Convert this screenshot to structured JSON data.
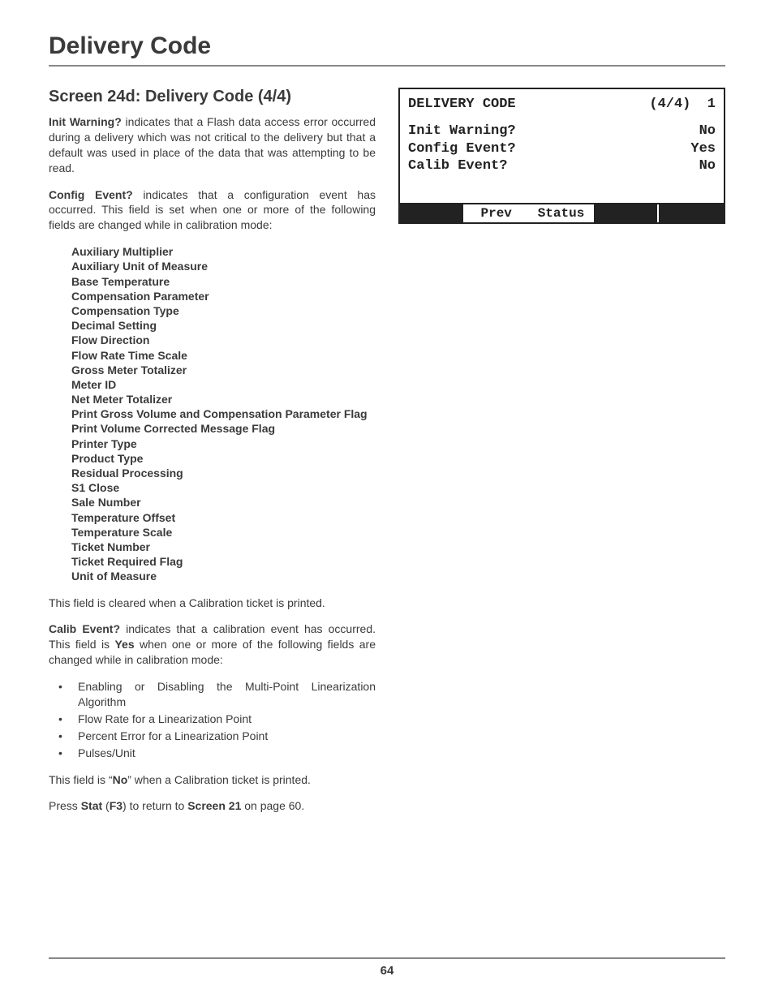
{
  "page": {
    "title": "Delivery Code",
    "section_title": "Screen 24d: Delivery Code (4/4)",
    "footer_page_number": "64"
  },
  "paragraphs": {
    "init_warning_lead": "Init Warning?",
    "init_warning_body": " indicates that a Flash data access error occurred during a delivery which was not critical to the delivery but that a default was used in place of the data that was attempting to be read.",
    "config_event_lead": "Config Event?",
    "config_event_body": " indicates that a configuration event has occurred.  This field is set when one or more of the following fields are changed while in calibration mode:",
    "cleared_line": "This field is cleared when a Calibration ticket is printed.",
    "calib_event_lead": "Calib Event?",
    "calib_event_body_1": " indicates that a calibration event has occurred.  This field is ",
    "calib_event_yes": "Yes",
    "calib_event_body_2": " when one or more of the following fields are changed while in calibration mode:",
    "no_line_pre": "This field is “",
    "no_line_bold": "No",
    "no_line_post": "” when a Calibration ticket is printed.",
    "press_stat_pre": "Press ",
    "press_stat_stat": "Stat",
    "press_stat_paren_open": " (",
    "press_stat_f3": "F3",
    "press_stat_mid": ") to return to ",
    "press_stat_screen": "Screen 21",
    "press_stat_post": " on page 60."
  },
  "config_fields": [
    "Auxiliary Multiplier",
    "Auxiliary Unit of Measure",
    "Base Temperature",
    "Compensation Parameter",
    "Compensation Type",
    "Decimal Setting",
    "Flow Direction",
    "Flow Rate Time Scale",
    "Gross Meter Totalizer",
    "Meter ID",
    "Net Meter Totalizer",
    "Print Gross Volume and Compensation Parameter Flag",
    "Print Volume Corrected Message Flag",
    "Printer Type",
    "Product Type",
    "Residual Processing",
    "S1 Close",
    "Sale Number",
    "Temperature Offset",
    "Temperature Scale",
    "Ticket Number",
    "Ticket Required Flag",
    "Unit of Measure"
  ],
  "calib_bullets": [
    "Enabling or Disabling the Multi-Point Linearization Algorithm",
    "Flow Rate for a Linearization Point",
    "Percent Error for a Linearization Point",
    "Pulses/Unit"
  ],
  "lcd": {
    "title": "DELIVERY CODE",
    "page_indicator": "(4/4)  1",
    "rows": [
      {
        "label": "Init Warning?",
        "value": "No"
      },
      {
        "label": "Config Event?",
        "value": "Yes"
      },
      {
        "label": "Calib Event?",
        "value": "No"
      }
    ],
    "footer": [
      "",
      "Prev",
      "Status",
      "",
      ""
    ]
  },
  "colors": {
    "text": "#3a3a3a",
    "rule": "#888888",
    "lcd_border": "#222222",
    "lcd_bg": "#ffffff",
    "lcd_footer_bg": "#222222",
    "lcd_footer_fg": "#ffffff"
  }
}
